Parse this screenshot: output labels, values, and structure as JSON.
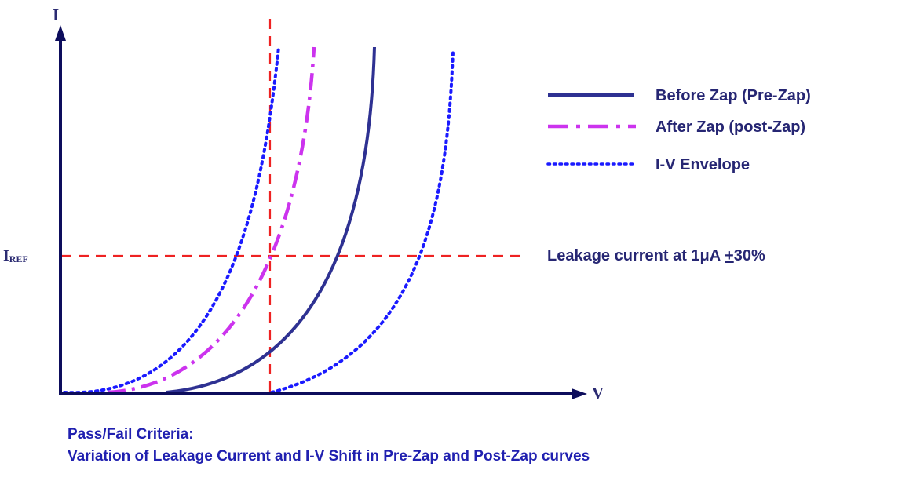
{
  "diagram": {
    "y_axis_label": "I",
    "x_axis_label": "V",
    "iref_label": {
      "main": "I",
      "sub": "REF"
    },
    "leakage_prefix": "Leakage current at 1μA ",
    "leakage_pm": "+",
    "leakage_suffix": "30%",
    "legend": {
      "pre_zap": "Before Zap (Pre-Zap)",
      "post_zap": "After Zap (post-Zap)",
      "envelope": "I-V Envelope"
    },
    "colors": {
      "axis": "#0d0d5c",
      "pre_zap": "#2e3192",
      "post_zap": "#cc33ee",
      "envelope": "#1a1aff",
      "reference": "#ee2222"
    }
  },
  "caption": {
    "line1": "Pass/Fail Criteria:",
    "line2": "Variation of Leakage Current and I-V Shift in Pre-Zap and Post-Zap curves"
  }
}
